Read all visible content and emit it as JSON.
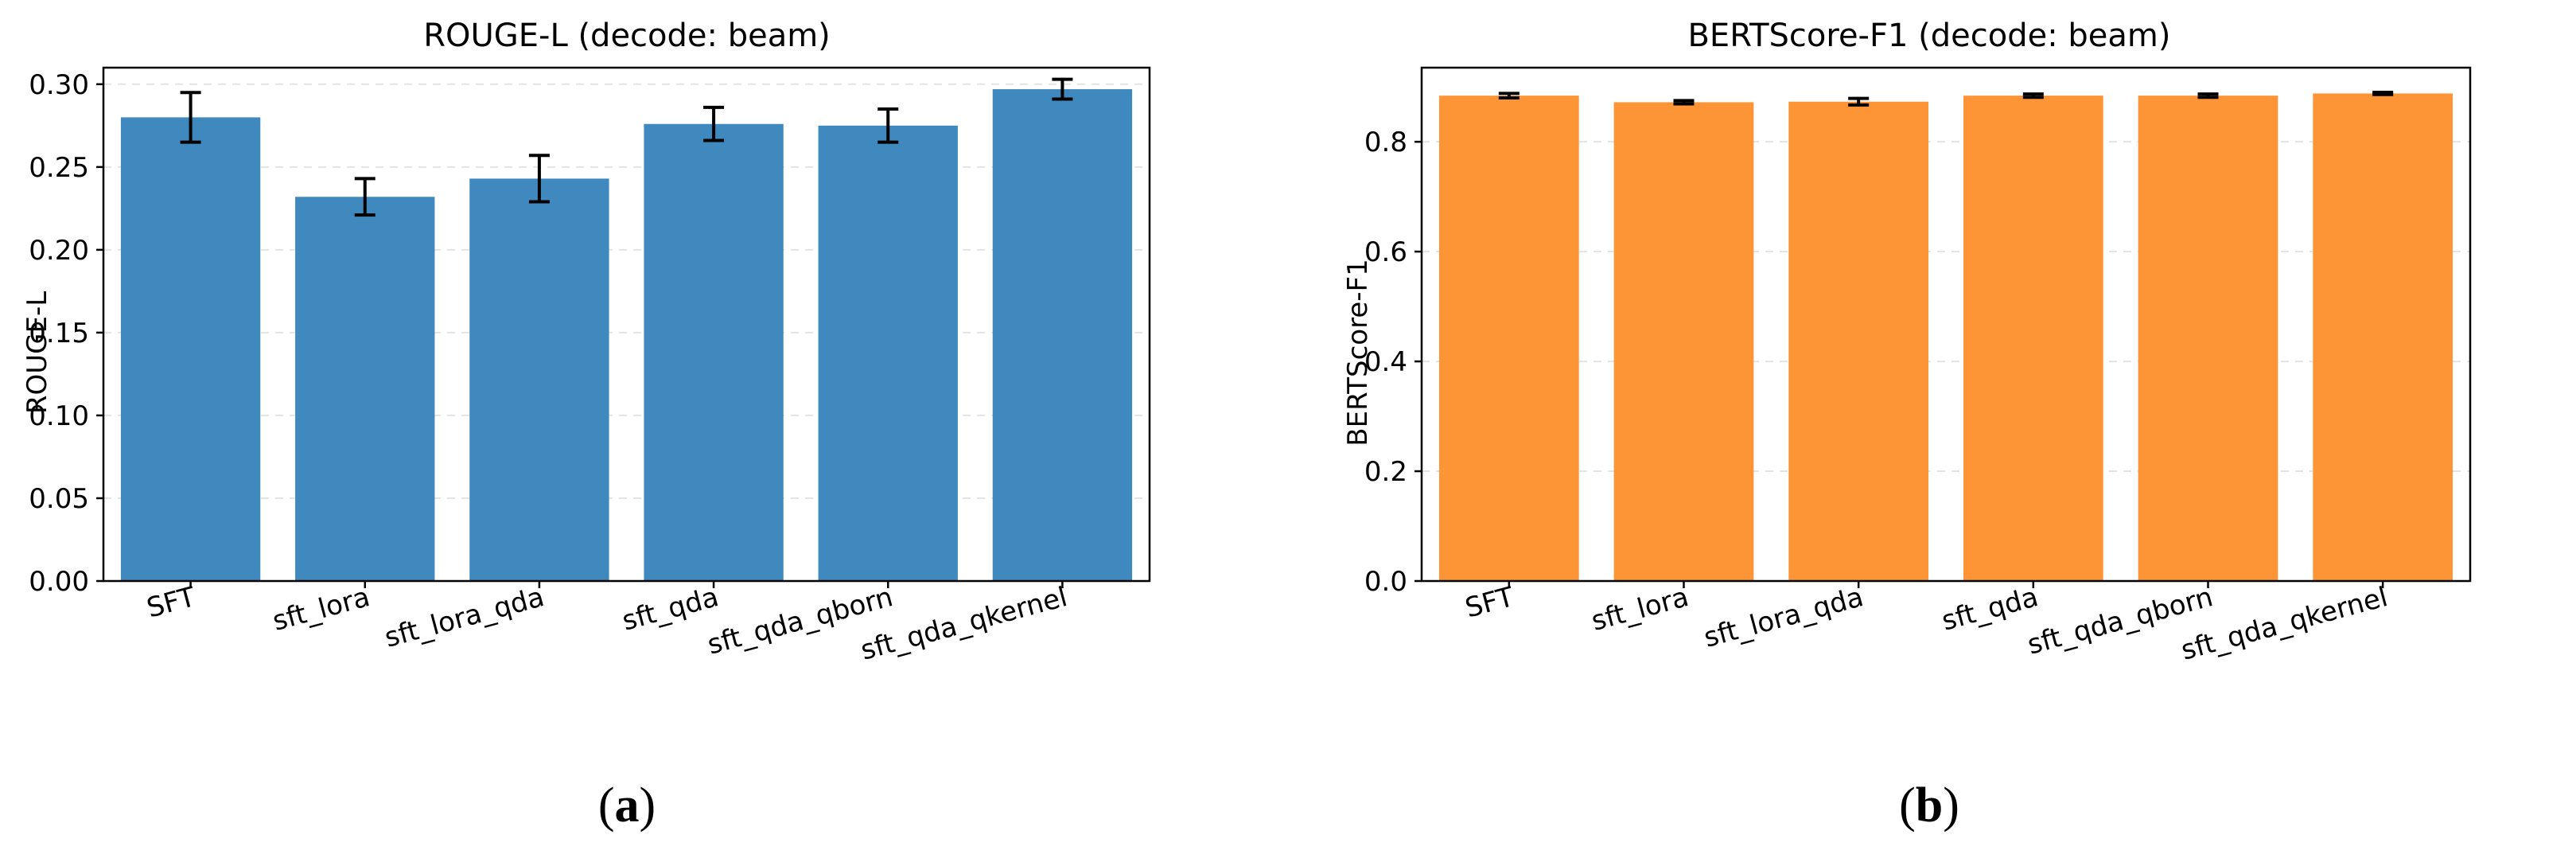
{
  "chart_data": [
    {
      "type": "bar",
      "title": "ROUGE-L (decode: beam)",
      "xlabel": "",
      "ylabel": "ROUGE-L",
      "categories": [
        "SFT",
        "sft_lora",
        "sft_lora_qda",
        "sft_qda",
        "sft_qda_qborn",
        "sft_qda_qkernel"
      ],
      "values": [
        0.28,
        0.232,
        0.243,
        0.276,
        0.275,
        0.297
      ],
      "errors": [
        0.015,
        0.011,
        0.014,
        0.01,
        0.01,
        0.006
      ],
      "ylim": [
        0,
        0.31
      ],
      "yticks": [
        "0.00",
        "0.05",
        "0.10",
        "0.15",
        "0.20",
        "0.25",
        "0.30"
      ],
      "color": "#3f89bf",
      "grid": true,
      "panel_label": "a"
    },
    {
      "type": "bar",
      "title": "BERTScore-F1 (decode: beam)",
      "xlabel": "",
      "ylabel": "BERTScore-F1",
      "categories": [
        "SFT",
        "sft_lora",
        "sft_lora_qda",
        "sft_qda",
        "sft_qda_qborn",
        "sft_qda_qkernel"
      ],
      "values": [
        0.884,
        0.872,
        0.873,
        0.884,
        0.884,
        0.888
      ],
      "errors": [
        0.004,
        0.003,
        0.006,
        0.003,
        0.003,
        0.002
      ],
      "ylim": [
        0,
        0.935
      ],
      "yticks": [
        "0.0",
        "0.2",
        "0.4",
        "0.6",
        "0.8"
      ],
      "color": "#fd9435",
      "grid": true,
      "panel_label": "b"
    }
  ]
}
